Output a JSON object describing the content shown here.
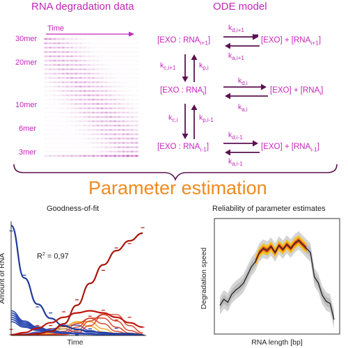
{
  "titles": {
    "degradation_data": "RNA degradation data",
    "ode_model": "ODE model",
    "parameter_estimation": "Parameter estimation",
    "goodness_of_fit": "Goodness-of-fit",
    "reliability": "Reliability of parameter estimates"
  },
  "gel": {
    "time_label": "Time",
    "lengths": [
      "30mer",
      "20mer",
      "10mer",
      "6mer",
      "3mer"
    ]
  },
  "ode": {
    "complex_top": "[EXO : RNA",
    "complex_top_sub": "i+1",
    "complex_mid": "[EXO : RNA",
    "complex_mid_sub": "i",
    "complex_bot": "[EXO : RNA",
    "complex_bot_sub": "i-1",
    "free_top": "[EXO] + [RNA",
    "free_top_sub": "i+1",
    "free_mid": "[EXO] + [RNA",
    "free_mid_sub": "i",
    "free_bot": "[EXO] + [RNA",
    "free_bot_sub": "i-1",
    "close": "]",
    "k": "k",
    "rates": {
      "kd_top": "d,i+1",
      "ka_top": "a,i+1",
      "kd_mid": "d,i",
      "ka_mid": "a,i",
      "kd_bot": "d,i-1",
      "ka_bot": "a,i-1",
      "kc_upper": "c,i+1",
      "kp_upper": "p,i",
      "kc_lower": "c,i",
      "kp_lower": "p,i-1"
    }
  },
  "fit_chart": {
    "ylabel": "Amount of RNA",
    "xlabel": "Time",
    "r2_label": "R",
    "r2_sup": "2",
    "r2_value": " = 0,97"
  },
  "speed_chart": {
    "ylabel": "Degradation speed",
    "xlabel": "RNA length [bp]"
  },
  "colors": {
    "magenta": "#c226b8",
    "dark_purple": "#5a1250",
    "orange": "#f08a1f",
    "blue": "#1e3a9a",
    "red": "#c0170e"
  },
  "chart_data": [
    {
      "type": "line",
      "title": "Goodness-of-fit",
      "xlabel": "Time",
      "ylabel": "Amount of RNA",
      "annotation": "R² = 0,97",
      "grid": false,
      "x": [
        0,
        0.1,
        0.2,
        0.3,
        0.4,
        0.5,
        0.6,
        0.7,
        0.8,
        0.9,
        1.0
      ],
      "series": [
        {
          "values": [
            1.0,
            0.52,
            0.28,
            0.15,
            0.08,
            0.05,
            0.03,
            0.02,
            0.01,
            0.01,
            0.0
          ]
        },
        {
          "values": [
            0.0,
            0.02,
            0.06,
            0.11,
            0.16,
            0.2,
            0.22,
            0.2,
            0.16,
            0.11,
            0.07
          ]
        },
        {
          "values": [
            0.0,
            0.0,
            0.01,
            0.03,
            0.1,
            0.27,
            0.47,
            0.64,
            0.77,
            0.86,
            0.93
          ]
        }
      ]
    },
    {
      "type": "line",
      "title": "Reliability of parameter estimates",
      "xlabel": "RNA length [bp]",
      "ylabel": "Degradation speed",
      "grid": false,
      "x": [
        1,
        2,
        3,
        4,
        5,
        6,
        7,
        8,
        9,
        10,
        11,
        12,
        13,
        14,
        15,
        16,
        17,
        18,
        19,
        20,
        21,
        22,
        23,
        24,
        25,
        26,
        27,
        28,
        29,
        30
      ],
      "series": [
        {
          "values": [
            0.2,
            0.26,
            0.23,
            0.31,
            0.35,
            0.38,
            0.42,
            0.5,
            0.58,
            0.63,
            0.72,
            0.76,
            0.74,
            0.78,
            0.72,
            0.79,
            0.75,
            0.8,
            0.76,
            0.81,
            0.84,
            0.8,
            0.76,
            0.72,
            0.48,
            0.42,
            0.3,
            0.24,
            0.22,
            0.06
          ]
        }
      ]
    }
  ]
}
